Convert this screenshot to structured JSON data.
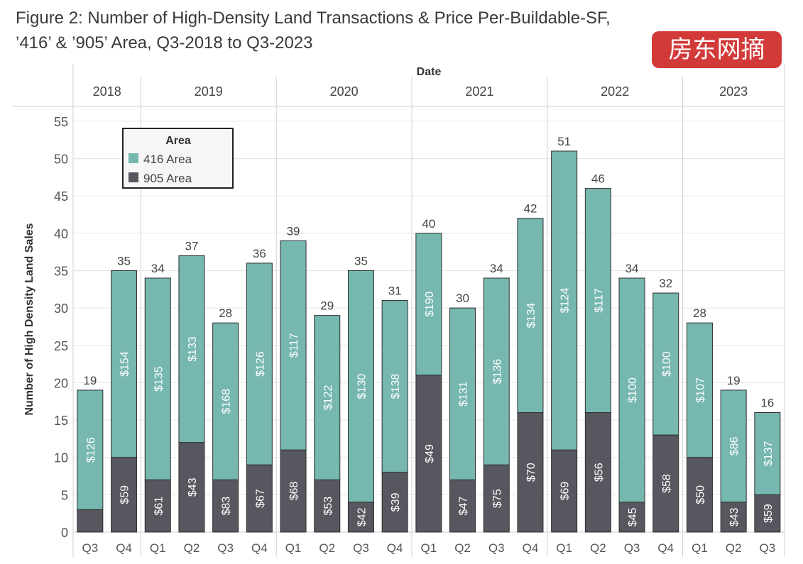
{
  "figure_title": "Figure 2: Number of High-Density Land Transactions & Price Per-Buildable-SF, ’416’ & ’905’ Area, Q3-2018 to Q3-2023",
  "watermark": "房东网摘",
  "colors": {
    "416": "#76b7b0",
    "905": "#57575f",
    "grid": "#e6e6e6",
    "divider": "#d0d0d0"
  },
  "chart_data": {
    "type": "bar",
    "stacked": true,
    "date_header": "Date",
    "years": [
      {
        "label": "2018",
        "quarters": [
          "Q3",
          "Q4"
        ]
      },
      {
        "label": "2019",
        "quarters": [
          "Q1",
          "Q2",
          "Q3",
          "Q4"
        ]
      },
      {
        "label": "2020",
        "quarters": [
          "Q1",
          "Q2",
          "Q3",
          "Q4"
        ]
      },
      {
        "label": "2021",
        "quarters": [
          "Q1",
          "Q2",
          "Q3",
          "Q4"
        ]
      },
      {
        "label": "2022",
        "quarters": [
          "Q1",
          "Q2",
          "Q3",
          "Q4"
        ]
      },
      {
        "label": "2023",
        "quarters": [
          "Q1",
          "Q2",
          "Q3"
        ]
      }
    ],
    "ylabel": "Number of High Density Land Sales",
    "ylim": [
      0,
      55
    ],
    "yticks": [
      0,
      5,
      10,
      15,
      20,
      25,
      30,
      35,
      40,
      45,
      50,
      55
    ],
    "grid": true,
    "legend": {
      "title": "Area",
      "placement": "top-left"
    },
    "series": [
      {
        "name": "905 Area",
        "color": "#57575f",
        "values": [
          3,
          10,
          7,
          12,
          7,
          9,
          11,
          7,
          4,
          8,
          21,
          7,
          9,
          16,
          11,
          16,
          4,
          13,
          10,
          4,
          5
        ],
        "price_labels": [
          "",
          "$59",
          "$61",
          "$43",
          "$83",
          "$67",
          "$68",
          "$53",
          "$42",
          "$39",
          "$49",
          "$47",
          "$75",
          "$70",
          "$69",
          "$56",
          "$45",
          "$58",
          "$50",
          "$43",
          "$59"
        ]
      },
      {
        "name": "416 Area",
        "color": "#76b7b0",
        "values": [
          16,
          25,
          27,
          25,
          21,
          27,
          28,
          22,
          31,
          23,
          19,
          23,
          25,
          26,
          40,
          30,
          30,
          19,
          18,
          15,
          11
        ],
        "price_labels": [
          "$126",
          "$154",
          "$135",
          "$133",
          "$168",
          "$126",
          "$117",
          "$122",
          "$130",
          "$138",
          "$190",
          "$131",
          "$136",
          "$134",
          "$124",
          "$117",
          "$100",
          "$100",
          "$107",
          "$86",
          "$137"
        ]
      }
    ],
    "totals": [
      "19",
      "35",
      "34",
      "37",
      "28",
      "36",
      "39",
      "29",
      "35",
      "31",
      "40",
      "30",
      "34",
      "42",
      "51",
      "46",
      "34",
      "32",
      "28",
      "19",
      "16"
    ]
  }
}
